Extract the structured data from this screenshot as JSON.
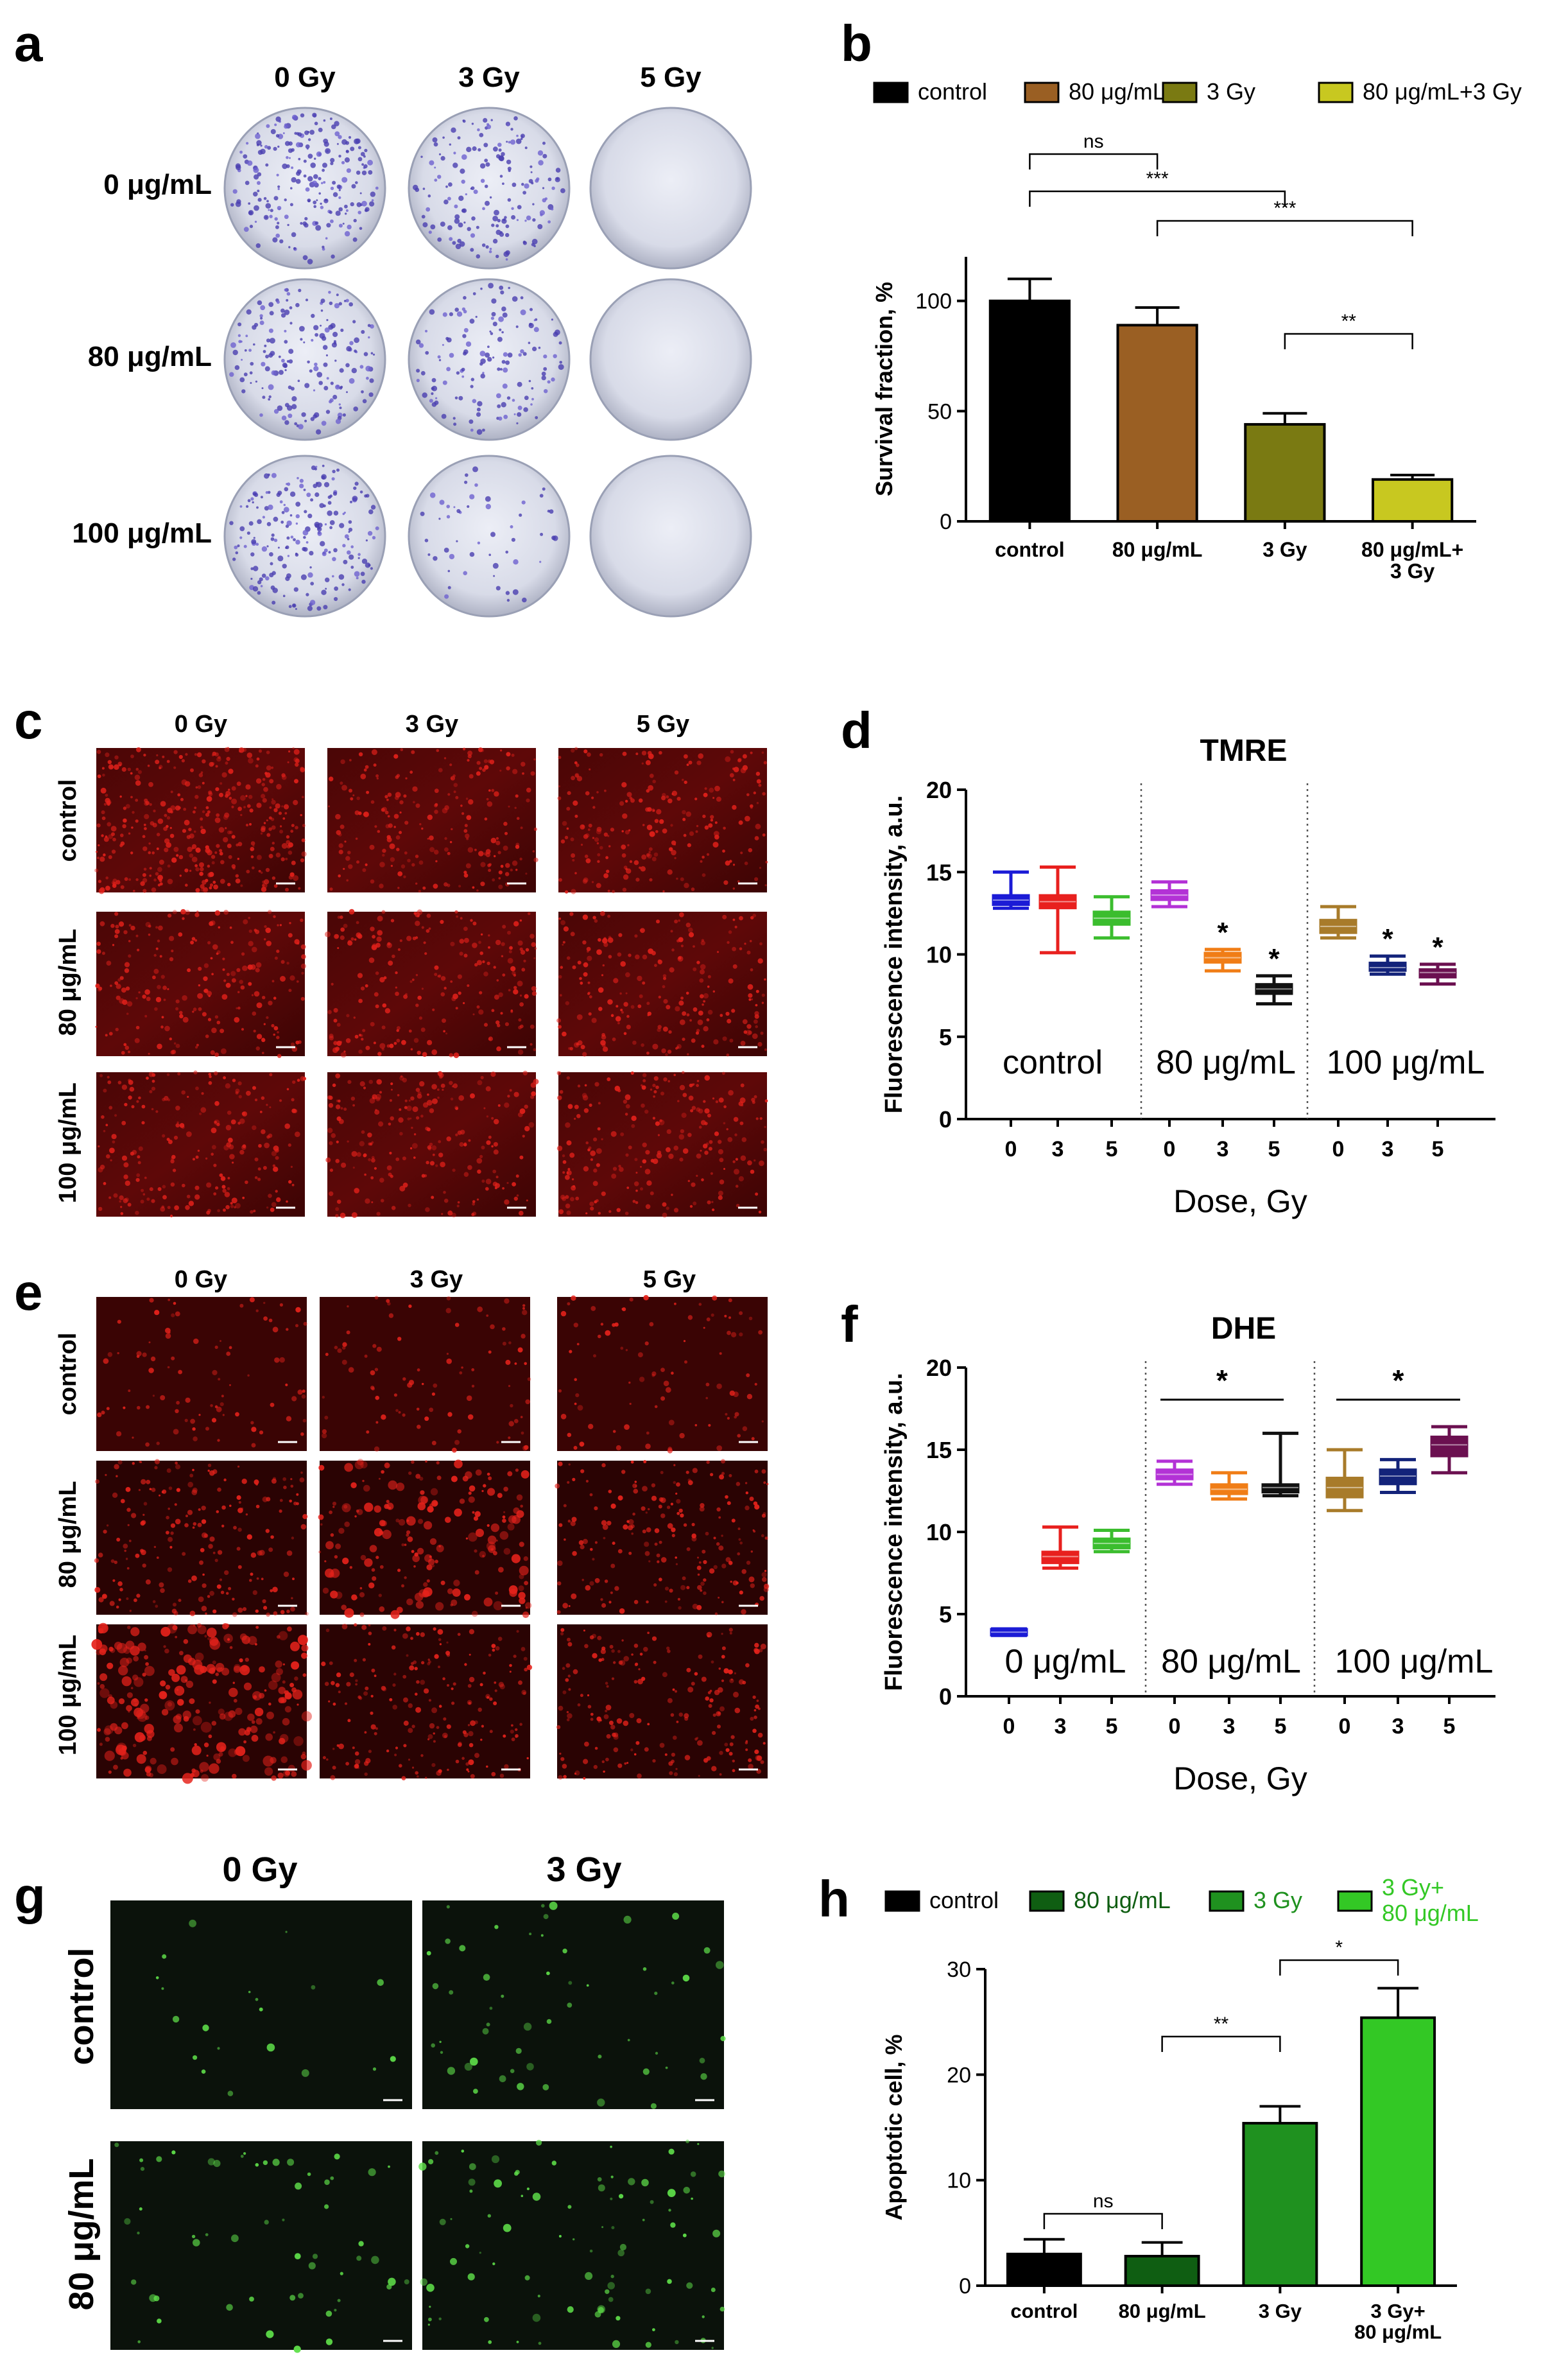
{
  "panels": {
    "a": "a",
    "b": "b",
    "c": "c",
    "d": "d",
    "e": "e",
    "f": "f",
    "g": "g",
    "h": "h"
  },
  "panel_a": {
    "col_labels": [
      "0 Gy",
      "3 Gy",
      "5 Gy"
    ],
    "row_labels": [
      "0 μg/mL",
      "80 μg/mL",
      "100 μg/mL"
    ],
    "dish_colony_density": [
      [
        0.9,
        0.65,
        0.0
      ],
      [
        0.7,
        0.55,
        0.0
      ],
      [
        0.8,
        0.2,
        0.0
      ]
    ]
  },
  "panel_c": {
    "col_labels": [
      "0 Gy",
      "3 Gy",
      "5 Gy"
    ],
    "row_labels": [
      "control",
      "80 μg/mL",
      "100 μg/mL"
    ]
  },
  "panel_e": {
    "col_labels": [
      "0 Gy",
      "3 Gy",
      "5 Gy"
    ],
    "row_labels": [
      "control",
      "80 μg/mL",
      "100 μg/mL"
    ]
  },
  "panel_g": {
    "col_labels": [
      "0 Gy",
      "3 Gy"
    ],
    "row_labels": [
      "control",
      "80 μg/mL"
    ]
  },
  "chart_data": [
    {
      "id": "b",
      "type": "bar",
      "title": "",
      "ylabel": "Survival fraction, %",
      "xlabel": "",
      "ylim": [
        0,
        120
      ],
      "yticks": [
        0,
        50,
        100
      ],
      "legend": [
        "control",
        "80 μg/mL",
        "3 Gy",
        "80 μg/mL+3 Gy"
      ],
      "categories": [
        "control",
        "80 μg/mL",
        "3 Gy",
        "80 μg/mL+\n3 Gy"
      ],
      "values": [
        100,
        89,
        44,
        19
      ],
      "errors": [
        10,
        8,
        5,
        2
      ],
      "colors": [
        "#000000",
        "#9a5f23",
        "#7a7a12",
        "#c8c820"
      ],
      "significance": [
        {
          "from": 0,
          "to": 1,
          "label": "ns"
        },
        {
          "from": 0,
          "to": 2,
          "label": "***"
        },
        {
          "from": 1,
          "to": 3,
          "label": "***"
        },
        {
          "from": 2,
          "to": 3,
          "label": "**"
        }
      ]
    },
    {
      "id": "d",
      "type": "box",
      "title": "TMRE",
      "ylabel": "Fluorescence intensity, a.u.",
      "xlabel": "Dose, Gy",
      "ylim": [
        0,
        20
      ],
      "yticks": [
        0,
        5,
        10,
        15,
        20
      ],
      "groups": [
        "control",
        "80 μg/mL",
        "100 μg/mL"
      ],
      "ticks": [
        "0",
        "3",
        "5",
        "0",
        "3",
        "5",
        "0",
        "3",
        "5"
      ],
      "boxes": [
        {
          "min": 12.8,
          "q1": 13.0,
          "med": 13.3,
          "q3": 13.6,
          "max": 15.0,
          "color": "#1b1bd6",
          "star": ""
        },
        {
          "min": 10.1,
          "q1": 12.8,
          "med": 13.2,
          "q3": 13.6,
          "max": 15.3,
          "color": "#e8201e",
          "star": ""
        },
        {
          "min": 11.0,
          "q1": 11.8,
          "med": 12.2,
          "q3": 12.6,
          "max": 13.5,
          "color": "#3bbd2e",
          "star": ""
        },
        {
          "min": 12.9,
          "q1": 13.3,
          "med": 13.6,
          "q3": 13.9,
          "max": 14.4,
          "color": "#b332d6",
          "star": ""
        },
        {
          "min": 9.0,
          "q1": 9.5,
          "med": 9.8,
          "q3": 10.1,
          "max": 10.3,
          "color": "#f07d16",
          "star": "*"
        },
        {
          "min": 7.0,
          "q1": 7.6,
          "med": 7.9,
          "q3": 8.2,
          "max": 8.7,
          "color": "#111111",
          "star": "*"
        },
        {
          "min": 11.0,
          "q1": 11.3,
          "med": 11.7,
          "q3": 12.1,
          "max": 12.9,
          "color": "#a87b2a",
          "star": ""
        },
        {
          "min": 8.8,
          "q1": 9.0,
          "med": 9.2,
          "q3": 9.5,
          "max": 9.9,
          "color": "#13237a",
          "star": "*"
        },
        {
          "min": 8.2,
          "q1": 8.6,
          "med": 8.9,
          "q3": 9.1,
          "max": 9.4,
          "color": "#6b1050",
          "star": "*"
        }
      ]
    },
    {
      "id": "f",
      "type": "box",
      "title": "DHE",
      "ylabel": "Fluorescence intensity, a.u.",
      "xlabel": "Dose, Gy",
      "ylim": [
        0,
        20
      ],
      "yticks": [
        0,
        5,
        10,
        15,
        20
      ],
      "groups": [
        "0 μg/mL",
        "80 μg/mL",
        "100 μg/mL"
      ],
      "ticks": [
        "0",
        "3",
        "5",
        "0",
        "3",
        "5",
        "0",
        "3",
        "5"
      ],
      "group_stars": [
        "",
        "*",
        "*"
      ],
      "boxes": [
        {
          "min": 3.7,
          "q1": 3.7,
          "med": 3.9,
          "q3": 4.1,
          "max": 4.1,
          "color": "#1b1bd6",
          "star": ""
        },
        {
          "min": 7.8,
          "q1": 8.1,
          "med": 8.5,
          "q3": 8.8,
          "max": 10.3,
          "color": "#e8201e",
          "star": ""
        },
        {
          "min": 8.8,
          "q1": 9.0,
          "med": 9.3,
          "q3": 9.6,
          "max": 10.1,
          "color": "#3bbd2e",
          "star": ""
        },
        {
          "min": 12.9,
          "q1": 13.2,
          "med": 13.5,
          "q3": 13.8,
          "max": 14.3,
          "color": "#b332d6",
          "star": ""
        },
        {
          "min": 12.0,
          "q1": 12.3,
          "med": 12.6,
          "q3": 12.9,
          "max": 13.6,
          "color": "#f07d16",
          "star": ""
        },
        {
          "min": 12.2,
          "q1": 12.4,
          "med": 12.7,
          "q3": 12.9,
          "max": 16.0,
          "color": "#111111",
          "star": ""
        },
        {
          "min": 11.3,
          "q1": 12.1,
          "med": 12.7,
          "q3": 13.3,
          "max": 15.0,
          "color": "#a87b2a",
          "star": ""
        },
        {
          "min": 12.4,
          "q1": 12.9,
          "med": 13.4,
          "q3": 13.8,
          "max": 14.4,
          "color": "#13237a",
          "star": ""
        },
        {
          "min": 13.6,
          "q1": 14.6,
          "med": 15.3,
          "q3": 15.8,
          "max": 16.4,
          "color": "#6b1050",
          "star": ""
        }
      ]
    },
    {
      "id": "h",
      "type": "bar",
      "title": "",
      "ylabel": "Apoptotic cell, %",
      "xlabel": "",
      "ylim": [
        0,
        30
      ],
      "yticks": [
        0,
        10,
        20,
        30
      ],
      "legend": [
        "control",
        "80 μg/mL",
        "3 Gy",
        "3 Gy+\n80 μg/mL"
      ],
      "categories": [
        "control",
        "80 μg/mL",
        "3 Gy",
        "3 Gy+\n80 μg/mL"
      ],
      "values": [
        3.0,
        2.8,
        15.4,
        25.4
      ],
      "errors": [
        1.4,
        1.3,
        1.6,
        2.8
      ],
      "colors": [
        "#000000",
        "#0f5e12",
        "#1f911f",
        "#33c825"
      ],
      "significance": [
        {
          "from": 0,
          "to": 1,
          "label": "ns"
        },
        {
          "from": 1,
          "to": 2,
          "label": "**"
        },
        {
          "from": 2,
          "to": 3,
          "label": "*"
        }
      ]
    }
  ]
}
